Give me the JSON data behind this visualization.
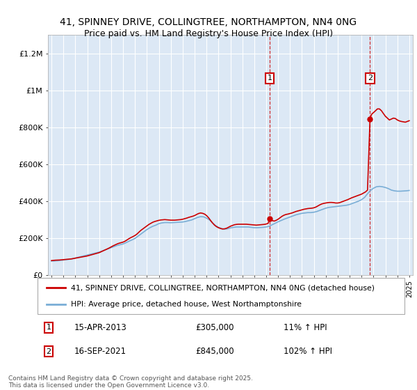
{
  "title_line1": "41, SPINNEY DRIVE, COLLINGTREE, NORTHAMPTON, NN4 0NG",
  "title_line2": "Price paid vs. HM Land Registry's House Price Index (HPI)",
  "background_color": "#ffffff",
  "plot_bg_color": "#dce8f5",
  "grid_color": "#ffffff",
  "ylim": [
    0,
    1300000
  ],
  "yticks": [
    0,
    200000,
    400000,
    600000,
    800000,
    1000000,
    1200000
  ],
  "ytick_labels": [
    "£0",
    "£200K",
    "£400K",
    "£600K",
    "£800K",
    "£1M",
    "£1.2M"
  ],
  "x_start_year": 1995,
  "x_end_year": 2025,
  "red_line_color": "#cc0000",
  "blue_line_color": "#7aaed6",
  "marker1_x": 2013.29,
  "marker2_x": 2021.71,
  "marker1_label": "1",
  "marker2_label": "2",
  "marker1_date": "15-APR-2013",
  "marker1_price": "£305,000",
  "marker1_hpi": "11% ↑ HPI",
  "marker2_date": "16-SEP-2021",
  "marker2_price": "£845,000",
  "marker2_hpi": "102% ↑ HPI",
  "legend_line1": "41, SPINNEY DRIVE, COLLINGTREE, NORTHAMPTON, NN4 0NG (detached house)",
  "legend_line2": "HPI: Average price, detached house, West Northamptonshire",
  "footnote": "Contains HM Land Registry data © Crown copyright and database right 2025.\nThis data is licensed under the Open Government Licence v3.0.",
  "hpi_x": [
    1995.0,
    1995.08,
    1995.17,
    1995.25,
    1995.33,
    1995.42,
    1995.5,
    1995.58,
    1995.67,
    1995.75,
    1995.83,
    1995.92,
    1996.0,
    1996.08,
    1996.17,
    1996.25,
    1996.33,
    1996.42,
    1996.5,
    1996.58,
    1996.67,
    1996.75,
    1996.83,
    1996.92,
    1997.0,
    1997.25,
    1997.5,
    1997.75,
    1998.0,
    1998.25,
    1998.5,
    1998.75,
    1999.0,
    1999.25,
    1999.5,
    1999.75,
    2000.0,
    2000.25,
    2000.5,
    2000.75,
    2001.0,
    2001.25,
    2001.5,
    2001.75,
    2002.0,
    2002.25,
    2002.5,
    2002.75,
    2003.0,
    2003.25,
    2003.5,
    2003.75,
    2004.0,
    2004.25,
    2004.5,
    2004.75,
    2005.0,
    2005.25,
    2005.5,
    2005.75,
    2006.0,
    2006.25,
    2006.5,
    2006.75,
    2007.0,
    2007.25,
    2007.5,
    2007.75,
    2008.0,
    2008.25,
    2008.5,
    2008.75,
    2009.0,
    2009.25,
    2009.5,
    2009.75,
    2010.0,
    2010.25,
    2010.5,
    2010.75,
    2011.0,
    2011.25,
    2011.5,
    2011.75,
    2012.0,
    2012.25,
    2012.5,
    2012.75,
    2013.0,
    2013.25,
    2013.5,
    2013.75,
    2014.0,
    2014.25,
    2014.5,
    2014.75,
    2015.0,
    2015.25,
    2015.5,
    2015.75,
    2016.0,
    2016.25,
    2016.5,
    2016.75,
    2017.0,
    2017.25,
    2017.5,
    2017.75,
    2018.0,
    2018.25,
    2018.5,
    2018.75,
    2019.0,
    2019.25,
    2019.5,
    2019.75,
    2020.0,
    2020.25,
    2020.5,
    2020.75,
    2021.0,
    2021.25,
    2021.5,
    2021.75,
    2022.0,
    2022.25,
    2022.5,
    2022.75,
    2023.0,
    2023.25,
    2023.5,
    2023.75,
    2024.0,
    2024.25,
    2024.5,
    2024.75,
    2025.0
  ],
  "hpi_y": [
    75000,
    76000,
    75500,
    76000,
    76500,
    77000,
    77000,
    77500,
    78000,
    78500,
    79000,
    80000,
    81000,
    82000,
    82500,
    83000,
    83500,
    84000,
    85000,
    86000,
    87000,
    88000,
    89000,
    90000,
    92000,
    96000,
    100000,
    104000,
    108000,
    112000,
    116000,
    120000,
    124000,
    130000,
    136000,
    142000,
    148000,
    154000,
    160000,
    164000,
    168000,
    175000,
    183000,
    190000,
    198000,
    210000,
    222000,
    234000,
    246000,
    256000,
    264000,
    270000,
    278000,
    282000,
    284000,
    284000,
    283000,
    284000,
    285000,
    286000,
    287000,
    290000,
    294000,
    298000,
    305000,
    312000,
    316000,
    315000,
    308000,
    298000,
    282000,
    268000,
    258000,
    252000,
    248000,
    250000,
    255000,
    258000,
    260000,
    260000,
    260000,
    260000,
    260000,
    258000,
    256000,
    256000,
    257000,
    258000,
    260000,
    264000,
    272000,
    280000,
    288000,
    295000,
    302000,
    308000,
    314000,
    320000,
    326000,
    330000,
    334000,
    336000,
    338000,
    338000,
    340000,
    344000,
    350000,
    356000,
    362000,
    366000,
    368000,
    370000,
    372000,
    374000,
    376000,
    378000,
    382000,
    388000,
    394000,
    400000,
    408000,
    420000,
    440000,
    458000,
    470000,
    478000,
    480000,
    478000,
    474000,
    468000,
    460000,
    456000,
    454000,
    454000,
    455000,
    456000,
    458000
  ],
  "red_x": [
    1995.0,
    1995.17,
    1995.33,
    1995.5,
    1995.67,
    1995.83,
    1996.0,
    1996.17,
    1996.33,
    1996.5,
    1996.67,
    1996.83,
    1997.0,
    1997.17,
    1997.33,
    1997.5,
    1997.67,
    1997.83,
    1998.0,
    1998.17,
    1998.33,
    1998.5,
    1998.67,
    1998.83,
    1999.0,
    1999.17,
    1999.33,
    1999.5,
    1999.67,
    1999.83,
    2000.0,
    2000.17,
    2000.33,
    2000.5,
    2000.67,
    2000.83,
    2001.0,
    2001.17,
    2001.33,
    2001.5,
    2001.67,
    2001.83,
    2002.0,
    2002.17,
    2002.33,
    2002.5,
    2002.67,
    2002.83,
    2003.0,
    2003.17,
    2003.33,
    2003.5,
    2003.67,
    2003.83,
    2004.0,
    2004.17,
    2004.33,
    2004.5,
    2004.67,
    2004.83,
    2005.0,
    2005.17,
    2005.33,
    2005.5,
    2005.67,
    2005.83,
    2006.0,
    2006.17,
    2006.33,
    2006.5,
    2006.67,
    2006.83,
    2007.0,
    2007.17,
    2007.33,
    2007.5,
    2007.67,
    2007.83,
    2008.0,
    2008.17,
    2008.33,
    2008.5,
    2008.67,
    2008.83,
    2009.0,
    2009.17,
    2009.33,
    2009.5,
    2009.67,
    2009.83,
    2010.0,
    2010.17,
    2010.33,
    2010.5,
    2010.67,
    2010.83,
    2011.0,
    2011.17,
    2011.33,
    2011.5,
    2011.67,
    2011.83,
    2012.0,
    2012.17,
    2012.33,
    2012.5,
    2012.67,
    2012.83,
    2013.0,
    2013.17,
    2013.29,
    2013.5,
    2013.67,
    2013.83,
    2014.0,
    2014.17,
    2014.33,
    2014.5,
    2014.67,
    2014.83,
    2015.0,
    2015.17,
    2015.33,
    2015.5,
    2015.67,
    2015.83,
    2016.0,
    2016.17,
    2016.33,
    2016.5,
    2016.67,
    2016.83,
    2017.0,
    2017.17,
    2017.33,
    2017.5,
    2017.67,
    2017.83,
    2018.0,
    2018.17,
    2018.33,
    2018.5,
    2018.67,
    2018.83,
    2019.0,
    2019.17,
    2019.33,
    2019.5,
    2019.67,
    2019.83,
    2020.0,
    2020.17,
    2020.33,
    2020.5,
    2020.67,
    2020.83,
    2021.0,
    2021.17,
    2021.33,
    2021.5,
    2021.71,
    2021.83,
    2022.0,
    2022.17,
    2022.33,
    2022.5,
    2022.67,
    2022.83,
    2023.0,
    2023.17,
    2023.33,
    2023.5,
    2023.67,
    2023.83,
    2024.0,
    2024.17,
    2024.33,
    2024.5,
    2024.67,
    2024.83,
    2025.0
  ],
  "red_y": [
    78000,
    79000,
    80000,
    80500,
    81000,
    82000,
    83000,
    84000,
    85000,
    86000,
    87000,
    89000,
    91000,
    93000,
    95000,
    97000,
    99000,
    101000,
    103000,
    106000,
    109000,
    112000,
    115000,
    118000,
    121000,
    126000,
    131000,
    136000,
    141000,
    146000,
    152000,
    158000,
    163000,
    168000,
    172000,
    175000,
    178000,
    183000,
    190000,
    197000,
    203000,
    208000,
    214000,
    222000,
    232000,
    242000,
    250000,
    258000,
    266000,
    274000,
    280000,
    286000,
    290000,
    293000,
    296000,
    298000,
    299000,
    300000,
    299000,
    298000,
    297000,
    297000,
    297000,
    298000,
    299000,
    300000,
    302000,
    305000,
    308000,
    312000,
    315000,
    318000,
    322000,
    328000,
    333000,
    336000,
    334000,
    330000,
    322000,
    310000,
    296000,
    282000,
    270000,
    262000,
    256000,
    252000,
    249000,
    250000,
    253000,
    258000,
    264000,
    268000,
    272000,
    274000,
    275000,
    275000,
    275000,
    275000,
    275000,
    274000,
    273000,
    272000,
    271000,
    270000,
    271000,
    272000,
    273000,
    274000,
    276000,
    280000,
    305000,
    295000,
    292000,
    296000,
    302000,
    310000,
    318000,
    324000,
    328000,
    330000,
    333000,
    336000,
    340000,
    344000,
    347000,
    350000,
    353000,
    356000,
    358000,
    360000,
    361000,
    362000,
    364000,
    368000,
    374000,
    380000,
    385000,
    388000,
    390000,
    392000,
    393000,
    393000,
    392000,
    390000,
    390000,
    392000,
    396000,
    400000,
    404000,
    408000,
    413000,
    418000,
    422000,
    426000,
    430000,
    434000,
    438000,
    444000,
    450000,
    460000,
    845000,
    870000,
    880000,
    890000,
    900000,
    900000,
    890000,
    875000,
    860000,
    850000,
    840000,
    845000,
    850000,
    848000,
    840000,
    835000,
    832000,
    830000,
    828000,
    832000,
    836000
  ]
}
